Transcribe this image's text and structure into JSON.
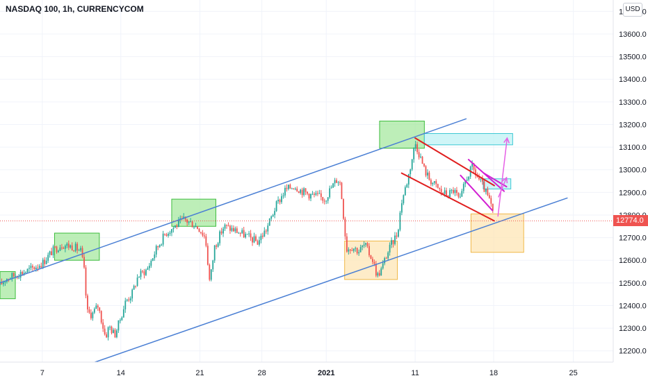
{
  "header": {
    "symbol_title": "NASDAQ 100, 1h, CURRENCYCOM",
    "currency_label": "USD"
  },
  "chart_data": {
    "type": "candlestick",
    "title": "NASDAQ 100, 1h, CURRENCYCOM",
    "xlabel": "",
    "ylabel": "",
    "ylim": [
      12150,
      13750
    ],
    "y_ticks": [
      12200,
      12300,
      12400,
      12500,
      12600,
      12700,
      12800,
      12900,
      13000,
      13100,
      13200,
      13300,
      13400,
      13500,
      13600,
      13700
    ],
    "y_tick_labels": [
      "12200.0",
      "12300.0",
      "12400.0",
      "12500.0",
      "12600.0",
      "12700.0",
      "12800.0",
      "12900.0",
      "13000.0",
      "13100.0",
      "13200.0",
      "13300.0",
      "13400.0",
      "13500.0",
      "13600.0",
      "13700.0"
    ],
    "x_ticks": [
      {
        "label": "7",
        "pos": 0.069,
        "bold": false
      },
      {
        "label": "14",
        "pos": 0.197,
        "bold": false
      },
      {
        "label": "21",
        "pos": 0.326,
        "bold": false
      },
      {
        "label": "28",
        "pos": 0.427,
        "bold": false
      },
      {
        "label": "2021",
        "pos": 0.532,
        "bold": true
      },
      {
        "label": "11",
        "pos": 0.677,
        "bold": false
      },
      {
        "label": "18",
        "pos": 0.805,
        "bold": false
      },
      {
        "label": "25",
        "pos": 0.935,
        "bold": false
      }
    ],
    "last_price": 12774.0,
    "last_price_label": "12774.0",
    "up_color": "#26a69a",
    "down_color": "#ef5350",
    "price_path": [
      [
        0.0,
        12490
      ],
      [
        0.01,
        12520
      ],
      [
        0.03,
        12540
      ],
      [
        0.05,
        12560
      ],
      [
        0.07,
        12590
      ],
      [
        0.085,
        12640
      ],
      [
        0.1,
        12670
      ],
      [
        0.12,
        12660
      ],
      [
        0.132,
        12640
      ],
      [
        0.137,
        12560
      ],
      [
        0.142,
        12370
      ],
      [
        0.15,
        12360
      ],
      [
        0.16,
        12400
      ],
      [
        0.172,
        12260
      ],
      [
        0.178,
        12310
      ],
      [
        0.187,
        12270
      ],
      [
        0.195,
        12330
      ],
      [
        0.205,
        12420
      ],
      [
        0.215,
        12450
      ],
      [
        0.225,
        12530
      ],
      [
        0.24,
        12560
      ],
      [
        0.255,
        12650
      ],
      [
        0.27,
        12720
      ],
      [
        0.285,
        12750
      ],
      [
        0.3,
        12780
      ],
      [
        0.315,
        12760
      ],
      [
        0.325,
        12740
      ],
      [
        0.335,
        12700
      ],
      [
        0.342,
        12500
      ],
      [
        0.35,
        12660
      ],
      [
        0.365,
        12750
      ],
      [
        0.385,
        12730
      ],
      [
        0.4,
        12710
      ],
      [
        0.42,
        12680
      ],
      [
        0.435,
        12740
      ],
      [
        0.45,
        12840
      ],
      [
        0.465,
        12910
      ],
      [
        0.48,
        12930
      ],
      [
        0.49,
        12910
      ],
      [
        0.505,
        12890
      ],
      [
        0.52,
        12880
      ],
      [
        0.53,
        12870
      ],
      [
        0.54,
        12920
      ],
      [
        0.55,
        12960
      ],
      [
        0.555,
        12940
      ],
      [
        0.56,
        12800
      ],
      [
        0.565,
        12650
      ],
      [
        0.575,
        12660
      ],
      [
        0.585,
        12640
      ],
      [
        0.595,
        12670
      ],
      [
        0.6,
        12640
      ],
      [
        0.608,
        12600
      ],
      [
        0.615,
        12530
      ],
      [
        0.622,
        12560
      ],
      [
        0.63,
        12620
      ],
      [
        0.64,
        12680
      ],
      [
        0.648,
        12720
      ],
      [
        0.655,
        12860
      ],
      [
        0.665,
        12960
      ],
      [
        0.672,
        13050
      ],
      [
        0.677,
        13120
      ],
      [
        0.685,
        13060
      ],
      [
        0.692,
        13000
      ],
      [
        0.7,
        12960
      ],
      [
        0.71,
        12930
      ],
      [
        0.72,
        12900
      ],
      [
        0.73,
        12890
      ],
      [
        0.74,
        12910
      ],
      [
        0.75,
        12860
      ],
      [
        0.76,
        12960
      ],
      [
        0.77,
        13010
      ],
      [
        0.778,
        12970
      ],
      [
        0.785,
        12940
      ],
      [
        0.792,
        12900
      ],
      [
        0.8,
        12850
      ],
      [
        0.806,
        12774
      ]
    ],
    "shapes": [
      {
        "kind": "channel-line",
        "name": "upper-channel-line",
        "color": "#4a7fd4",
        "from": [
          0.0,
          12500
        ],
        "to": [
          0.76,
          13225
        ]
      },
      {
        "kind": "channel-line",
        "name": "lower-channel-line",
        "color": "#4a7fd4",
        "from": [
          0.155,
          12150
        ],
        "to": [
          0.925,
          12875
        ]
      },
      {
        "kind": "zone",
        "name": "supply-zone-1",
        "color": "#a7e8a0",
        "border": "#3cbc3c",
        "x0": 0.0,
        "x1": 0.025,
        "y0": 12430,
        "y1": 12550
      },
      {
        "kind": "zone",
        "name": "supply-zone-2",
        "color": "#a7e8a0",
        "border": "#3cbc3c",
        "x0": 0.089,
        "x1": 0.162,
        "y0": 12600,
        "y1": 12720
      },
      {
        "kind": "zone",
        "name": "supply-zone-3",
        "color": "#a7e8a0",
        "border": "#3cbc3c",
        "x0": 0.28,
        "x1": 0.352,
        "y0": 12750,
        "y1": 12870
      },
      {
        "kind": "zone",
        "name": "supply-zone-4",
        "color": "#a7e8a0",
        "border": "#3cbc3c",
        "x0": 0.619,
        "x1": 0.692,
        "y0": 13095,
        "y1": 13215
      },
      {
        "kind": "zone",
        "name": "demand-zone-1",
        "color": "#fde6b6",
        "border": "#f0b848",
        "x0": 0.562,
        "x1": 0.648,
        "y0": 12515,
        "y1": 12685
      },
      {
        "kind": "zone",
        "name": "demand-zone-2",
        "color": "#fde6b6",
        "border": "#f0b848",
        "x0": 0.768,
        "x1": 0.854,
        "y0": 12635,
        "y1": 12805
      },
      {
        "kind": "zone",
        "name": "target-zone-1",
        "color": "#bff1f4",
        "border": "#3cc8d4",
        "x0": 0.692,
        "x1": 0.836,
        "y0": 13110,
        "y1": 13160
      },
      {
        "kind": "zone",
        "name": "target-zone-2",
        "color": "#bff1f4",
        "border": "#3cc8d4",
        "x0": 0.788,
        "x1": 0.833,
        "y0": 12915,
        "y1": 12960
      },
      {
        "kind": "line",
        "name": "red-wedge-upper",
        "color": "#e01e1e",
        "width": 2,
        "from": [
          0.677,
          13140
        ],
        "to": [
          0.806,
          12930
        ]
      },
      {
        "kind": "line",
        "name": "red-wedge-lower",
        "color": "#e01e1e",
        "width": 2,
        "from": [
          0.655,
          12985
        ],
        "to": [
          0.806,
          12774
        ]
      },
      {
        "kind": "line",
        "name": "magenta-flag-upper",
        "color": "#d21fd2",
        "width": 2,
        "from": [
          0.764,
          13045
        ],
        "to": [
          0.822,
          12905
        ]
      },
      {
        "kind": "line",
        "name": "magenta-flag-lower",
        "color": "#d21fd2",
        "width": 2,
        "from": [
          0.751,
          12975
        ],
        "to": [
          0.803,
          12820
        ]
      },
      {
        "kind": "line",
        "name": "magenta-flag-cross",
        "color": "#d21fd2",
        "width": 2,
        "from": [
          0.789,
          12985
        ],
        "to": [
          0.826,
          12925
        ]
      },
      {
        "kind": "arrow",
        "name": "projection-arrow-up",
        "color": "#e660e6",
        "width": 1.5,
        "from": [
          0.812,
          12795
        ],
        "to": [
          0.827,
          13140
        ]
      },
      {
        "kind": "arrow",
        "name": "projection-arrow-small",
        "color": "#e660e6",
        "width": 1.5,
        "from": [
          0.813,
          12880
        ],
        "to": [
          0.826,
          12965
        ]
      }
    ]
  }
}
